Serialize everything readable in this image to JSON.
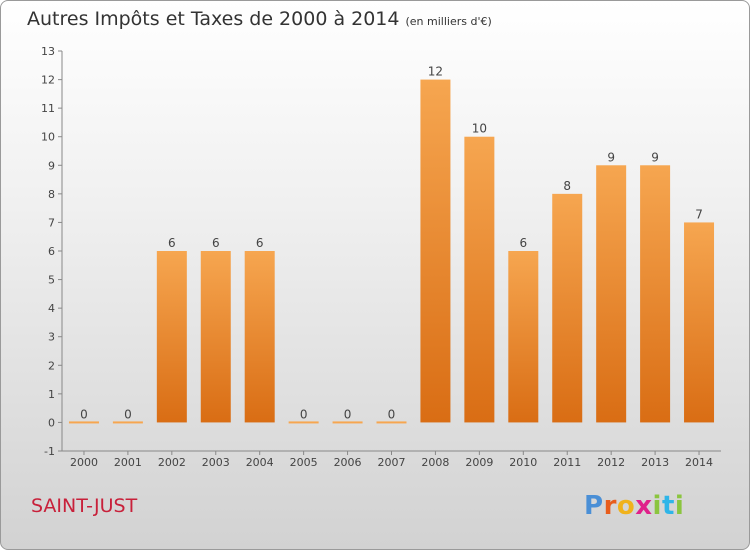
{
  "header": {
    "title": "Autres Impôts et Taxes de 2000 à 2014",
    "unit": "(en milliers d'€)"
  },
  "footer": {
    "commune": "SAINT-JUST",
    "brand_letters": [
      "P",
      "r",
      "o",
      "x",
      "i",
      "t",
      "i"
    ]
  },
  "colors": {
    "bar_light": "#f6a650",
    "bar_dark": "#d96d14",
    "commune_text": "#c8203a"
  },
  "chart_data": {
    "type": "bar",
    "title": "Autres Impôts et Taxes de 2000 à 2014",
    "subtitle": "(en milliers d'€)",
    "categories": [
      "2000",
      "2001",
      "2002",
      "2003",
      "2004",
      "2005",
      "2006",
      "2007",
      "2008",
      "2009",
      "2010",
      "2011",
      "2012",
      "2013",
      "2014"
    ],
    "values": [
      0,
      0,
      6,
      6,
      6,
      0,
      0,
      0,
      12,
      10,
      6,
      8,
      9,
      9,
      7
    ],
    "ylim": [
      -1,
      13
    ],
    "yticks": [
      -1,
      0,
      1,
      2,
      3,
      4,
      5,
      6,
      7,
      8,
      9,
      10,
      11,
      12,
      13
    ],
    "grid": false,
    "legend": "none"
  }
}
